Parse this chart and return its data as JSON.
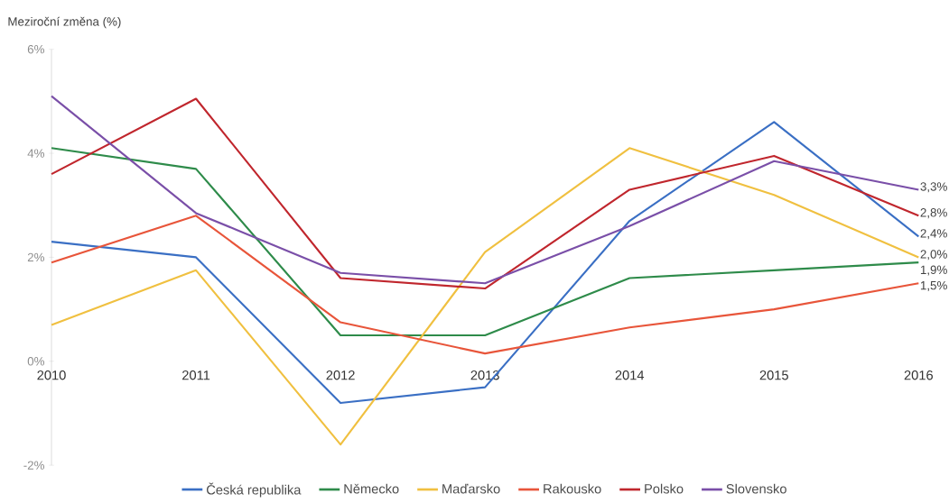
{
  "chart_data": {
    "type": "line",
    "ylabel": "Meziroční změna (%)",
    "categories": [
      "2010",
      "2011",
      "2012",
      "2013",
      "2014",
      "2015",
      "2016"
    ],
    "ylim": [
      -2,
      6
    ],
    "yticks": [
      {
        "value": -2,
        "label": "-2%"
      },
      {
        "value": 0,
        "label": "0%"
      },
      {
        "value": 2,
        "label": "2%"
      },
      {
        "value": 4,
        "label": "4%"
      },
      {
        "value": 6,
        "label": "6%"
      }
    ],
    "grid": false,
    "legend": "bottom",
    "marker": "none",
    "line_style": "solid",
    "series": [
      {
        "name": "Česká republika",
        "color": "#3a6fc4",
        "values": [
          2.3,
          2.0,
          -0.8,
          -0.5,
          2.7,
          4.6,
          2.4
        ],
        "value_labels": [
          null,
          null,
          null,
          null,
          null,
          null,
          "2,4%"
        ]
      },
      {
        "name": "Německo",
        "color": "#2e8b4a",
        "values": [
          4.1,
          3.7,
          0.5,
          0.5,
          1.6,
          1.75,
          1.9
        ],
        "value_labels": [
          null,
          null,
          null,
          null,
          null,
          null,
          "1,9%"
        ]
      },
      {
        "name": "Maďarsko",
        "color": "#f0c040",
        "values": [
          0.7,
          1.75,
          -1.6,
          2.1,
          4.1,
          3.2,
          2.0
        ],
        "value_labels": [
          null,
          null,
          null,
          null,
          null,
          null,
          "2,0%"
        ]
      },
      {
        "name": "Rakousko",
        "color": "#e8553a",
        "values": [
          1.9,
          2.8,
          0.75,
          0.15,
          0.65,
          1.0,
          1.5
        ],
        "value_labels": [
          null,
          null,
          null,
          null,
          null,
          null,
          "1,5%"
        ]
      },
      {
        "name": "Polsko",
        "color": "#c0262d",
        "values": [
          3.6,
          5.05,
          1.6,
          1.4,
          3.3,
          3.95,
          2.8
        ],
        "value_labels": [
          null,
          null,
          null,
          null,
          null,
          null,
          "2,8%"
        ]
      },
      {
        "name": "Slovensko",
        "color": "#7a4fa8",
        "values": [
          5.1,
          2.85,
          1.7,
          1.5,
          2.6,
          3.85,
          3.3
        ],
        "value_labels": [
          null,
          null,
          null,
          null,
          null,
          null,
          "3,3%"
        ]
      }
    ]
  }
}
